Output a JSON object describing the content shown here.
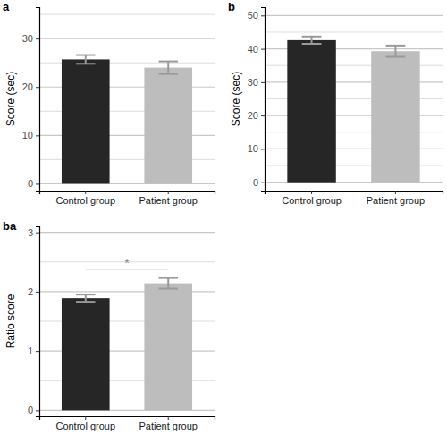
{
  "chart_data": [
    {
      "type": "bar",
      "title": "a",
      "y_label": "Score (sec)",
      "categories": [
        "Control group",
        "Patient group"
      ],
      "values": [
        25.7,
        24.0
      ],
      "errors": [
        0.9,
        1.3
      ],
      "colors": [
        "#262626",
        "#bdbdbd"
      ],
      "ylim": [
        -1.4,
        36.5
      ],
      "yticks": [
        0,
        10,
        20,
        30
      ],
      "minor_yticks": [
        5,
        15,
        25,
        35
      ],
      "grid": true
    },
    {
      "type": "bar",
      "title": "b",
      "y_label": "Score (sec)",
      "categories": [
        "Control group",
        "Patient group"
      ],
      "values": [
        42.6,
        39.3
      ],
      "errors": [
        1.1,
        1.7
      ],
      "colors": [
        "#262626",
        "#bdbdbd"
      ],
      "ylim": [
        -2.5,
        52.5
      ],
      "yticks": [
        0,
        10,
        20,
        30,
        40,
        50
      ],
      "minor_yticks": [
        5,
        15,
        25,
        35,
        45
      ],
      "grid": true
    },
    {
      "type": "bar",
      "title": "ba",
      "y_label": "Ratio score",
      "categories": [
        "Control group",
        "Patient group"
      ],
      "values": [
        1.89,
        2.14
      ],
      "errors": [
        0.06,
        0.09
      ],
      "colors": [
        "#262626",
        "#bdbdbd"
      ],
      "ylim": [
        -0.1,
        3.1
      ],
      "yticks": [
        0,
        1,
        2,
        3
      ],
      "minor_yticks": [
        0.5,
        1.5,
        2.5
      ],
      "grid": true,
      "annotations": [
        {
          "text": "*",
          "y": 2.38,
          "between": [
            0,
            1
          ]
        }
      ]
    }
  ]
}
